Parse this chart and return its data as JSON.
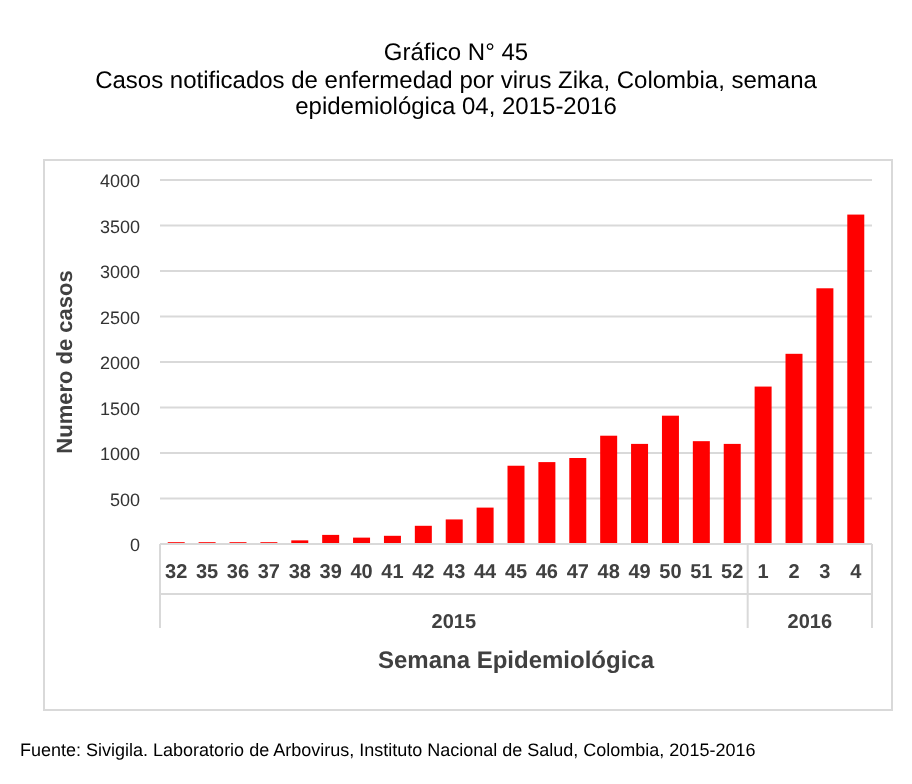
{
  "chart_data": {
    "type": "bar",
    "title": "Gráfico N° 45",
    "subtitle": "Casos notificados de enfermedad por virus Zika, Colombia,  semana epidemiológica 04, 2015-2016",
    "categories": [
      "32",
      "35",
      "36",
      "37",
      "38",
      "39",
      "40",
      "41",
      "42",
      "43",
      "44",
      "45",
      "46",
      "47",
      "48",
      "49",
      "50",
      "51",
      "52",
      "1",
      "2",
      "3",
      "4"
    ],
    "values": [
      20,
      20,
      20,
      20,
      40,
      100,
      70,
      90,
      200,
      270,
      400,
      860,
      900,
      945,
      1190,
      1100,
      1410,
      1130,
      1100,
      1730,
      2090,
      2810,
      3620
    ],
    "color": "#ff0000",
    "ylim": [
      0,
      4000
    ],
    "yticks": [
      0,
      500,
      1000,
      1500,
      2000,
      2500,
      3000,
      3500,
      4000
    ],
    "grid": "y",
    "ylabel": "Numero de casos",
    "xlabel": "Semana Epidemiológica",
    "annotations": [
      "2015",
      "2016",
      "Fuente: Sivigila. Laboratorio de Arbovirus, Instituto Nacional de Salud, Colombia, 2015-2016"
    ]
  }
}
